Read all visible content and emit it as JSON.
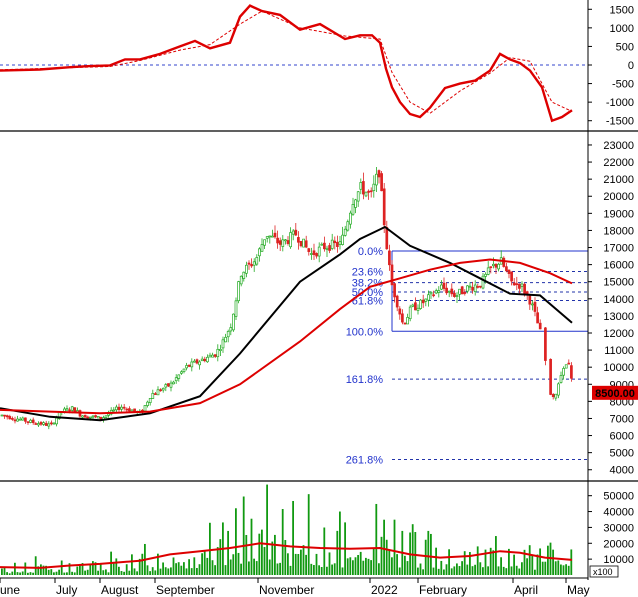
{
  "chart_data": [
    {
      "panel": "oscillator",
      "type": "line",
      "y_ticks": [
        "1500",
        "1000",
        "500",
        "0",
        "-500",
        "-1000",
        "-1500"
      ],
      "ylim": [
        -1750,
        1750
      ],
      "zero_line": true,
      "series": [
        {
          "color": "#dd0000",
          "style": "solid",
          "points": [
            [
              0,
              -150
            ],
            [
              40,
              -120
            ],
            [
              70,
              -60
            ],
            [
              90,
              -30
            ],
            [
              110,
              -10
            ],
            [
              125,
              150
            ],
            [
              140,
              150
            ],
            [
              160,
              300
            ],
            [
              180,
              500
            ],
            [
              195,
              650
            ],
            [
              210,
              450
            ],
            [
              230,
              600
            ],
            [
              240,
              1300
            ],
            [
              250,
              1600
            ],
            [
              262,
              1450
            ],
            [
              280,
              1350
            ],
            [
              300,
              950
            ],
            [
              320,
              1100
            ],
            [
              345,
              700
            ],
            [
              360,
              800
            ],
            [
              372,
              800
            ],
            [
              380,
              600
            ],
            [
              386,
              -100
            ],
            [
              392,
              -600
            ],
            [
              400,
              -1000
            ],
            [
              410,
              -1320
            ],
            [
              420,
              -1400
            ],
            [
              430,
              -1150
            ],
            [
              445,
              -620
            ],
            [
              460,
              -500
            ],
            [
              475,
              -420
            ],
            [
              490,
              -150
            ],
            [
              500,
              300
            ],
            [
              510,
              150
            ],
            [
              520,
              50
            ],
            [
              530,
              -150
            ],
            [
              542,
              -600
            ],
            [
              552,
              -1500
            ],
            [
              562,
              -1400
            ],
            [
              572,
              -1220
            ]
          ]
        },
        {
          "color": "#dd0000",
          "style": "dashed",
          "points": [
            [
              0,
              -130
            ],
            [
              60,
              -80
            ],
            [
              110,
              -40
            ],
            [
              140,
              120
            ],
            [
              180,
              400
            ],
            [
              210,
              550
            ],
            [
              240,
              1100
            ],
            [
              262,
              1450
            ],
            [
              300,
              1000
            ],
            [
              345,
              780
            ],
            [
              380,
              700
            ],
            [
              392,
              -200
            ],
            [
              410,
              -1000
            ],
            [
              430,
              -1300
            ],
            [
              460,
              -700
            ],
            [
              490,
              -220
            ],
            [
              510,
              200
            ],
            [
              530,
              100
            ],
            [
              552,
              -1000
            ],
            [
              572,
              -1250
            ]
          ]
        }
      ]
    },
    {
      "panel": "price",
      "type": "candlestick",
      "y_ticks": [
        "23000",
        "22000",
        "21000",
        "20000",
        "19000",
        "18000",
        "17000",
        "16000",
        "15000",
        "14000",
        "13000",
        "12000",
        "11000",
        "10000",
        "9000",
        "8000",
        "7000",
        "6000",
        "5000",
        "4000"
      ],
      "ylim": [
        3400,
        23700
      ],
      "last_price_label": "8500.00",
      "fibonacci": [
        {
          "label": "0.0%",
          "value": 16800
        },
        {
          "label": "23.6%",
          "value": 15600
        },
        {
          "label": "38.2%",
          "value": 14950
        },
        {
          "label": "50.0%",
          "value": 14400
        },
        {
          "label": "61.8%",
          "value": 13900
        },
        {
          "label": "100.0%",
          "value": 12100
        },
        {
          "label": "161.8%",
          "value": 9300
        },
        {
          "label": "261.8%",
          "value": 4600
        }
      ],
      "price_path": [
        [
          0,
          7200
        ],
        [
          30,
          6800
        ],
        [
          50,
          6600
        ],
        [
          60,
          7400
        ],
        [
          72,
          7600
        ],
        [
          80,
          7200
        ],
        [
          100,
          7000
        ],
        [
          120,
          7700
        ],
        [
          140,
          7300
        ],
        [
          150,
          8400
        ],
        [
          170,
          9000
        ],
        [
          185,
          10000
        ],
        [
          200,
          10400
        ],
        [
          215,
          10800
        ],
        [
          222,
          11500
        ],
        [
          230,
          12500
        ],
        [
          240,
          15500
        ],
        [
          255,
          16300
        ],
        [
          265,
          17800
        ],
        [
          280,
          17200
        ],
        [
          295,
          17800
        ],
        [
          310,
          16600
        ],
        [
          325,
          17100
        ],
        [
          340,
          17200
        ],
        [
          352,
          19800
        ],
        [
          360,
          20500
        ],
        [
          370,
          20000
        ],
        [
          378,
          21500
        ],
        [
          384,
          18000
        ],
        [
          390,
          15000
        ],
        [
          396,
          13800
        ],
        [
          402,
          12500
        ],
        [
          410,
          13400
        ],
        [
          425,
          13900
        ],
        [
          440,
          14700
        ],
        [
          455,
          14200
        ],
        [
          465,
          14600
        ],
        [
          480,
          14900
        ],
        [
          490,
          15800
        ],
        [
          500,
          16200
        ],
        [
          510,
          15000
        ],
        [
          520,
          14800
        ],
        [
          530,
          13800
        ],
        [
          535,
          12900
        ],
        [
          542,
          11500
        ],
        [
          548,
          8600
        ],
        [
          555,
          8300
        ],
        [
          560,
          9500
        ],
        [
          568,
          10300
        ],
        [
          572,
          8900
        ]
      ],
      "series": [
        {
          "name": "",
          "color": "#000000",
          "points": [
            [
              0,
              7600
            ],
            [
              50,
              7100
            ],
            [
              100,
              6900
            ],
            [
              150,
              7300
            ],
            [
              200,
              8300
            ],
            [
              240,
              10800
            ],
            [
              300,
              15000
            ],
            [
              340,
              16600
            ],
            [
              360,
              17500
            ],
            [
              385,
              18200
            ],
            [
              410,
              17100
            ],
            [
              450,
              16100
            ],
            [
              480,
              15200
            ],
            [
              510,
              14300
            ],
            [
              540,
              14200
            ],
            [
              572,
              12600
            ]
          ]
        },
        {
          "name": "",
          "color": "#dd0000",
          "points": [
            [
              0,
              7500
            ],
            [
              50,
              7400
            ],
            [
              100,
              7300
            ],
            [
              150,
              7400
            ],
            [
              200,
              7900
            ],
            [
              240,
              9000
            ],
            [
              300,
              11500
            ],
            [
              340,
              13400
            ],
            [
              370,
              14700
            ],
            [
              400,
              15200
            ],
            [
              430,
              15700
            ],
            [
              460,
              16100
            ],
            [
              490,
              16300
            ],
            [
              520,
              16100
            ],
            [
              550,
              15500
            ],
            [
              572,
              14900
            ]
          ]
        }
      ]
    },
    {
      "panel": "volume",
      "type": "bar",
      "y_ticks": [
        "50000",
        "40000",
        "30000",
        "20000",
        "10000"
      ],
      "ylim": [
        0,
        58000
      ],
      "unit_label": "x100",
      "x_tick_labels": [
        "June",
        "July",
        "August",
        "September",
        "November",
        "2022",
        "February",
        "April",
        "May"
      ],
      "volume_envelope": [
        [
          0,
          4000
        ],
        [
          50,
          8000
        ],
        [
          80,
          6000
        ],
        [
          120,
          9000
        ],
        [
          150,
          12000
        ],
        [
          180,
          18000
        ],
        [
          200,
          20000
        ],
        [
          230,
          30000
        ],
        [
          250,
          36000
        ],
        [
          270,
          32000
        ],
        [
          300,
          26000
        ],
        [
          330,
          22000
        ],
        [
          360,
          26000
        ],
        [
          380,
          30000
        ],
        [
          400,
          22000
        ],
        [
          430,
          16000
        ],
        [
          460,
          18000
        ],
        [
          490,
          22000
        ],
        [
          510,
          18000
        ],
        [
          540,
          14000
        ],
        [
          560,
          16000
        ],
        [
          572,
          12000
        ]
      ],
      "series": [
        {
          "name": "",
          "color": "#dd0000",
          "points": [
            [
              0,
              5000
            ],
            [
              40,
              4500
            ],
            [
              70,
              6000
            ],
            [
              100,
              7000
            ],
            [
              140,
              9000
            ],
            [
              170,
              13000
            ],
            [
              200,
              15000
            ],
            [
              230,
              17000
            ],
            [
              260,
              20000
            ],
            [
              290,
              18000
            ],
            [
              320,
              17000
            ],
            [
              350,
              16500
            ],
            [
              380,
              17000
            ],
            [
              410,
              13000
            ],
            [
              440,
              11000
            ],
            [
              470,
              12000
            ],
            [
              500,
              15000
            ],
            [
              520,
              14000
            ],
            [
              545,
              11000
            ],
            [
              572,
              9500
            ]
          ]
        }
      ]
    }
  ]
}
